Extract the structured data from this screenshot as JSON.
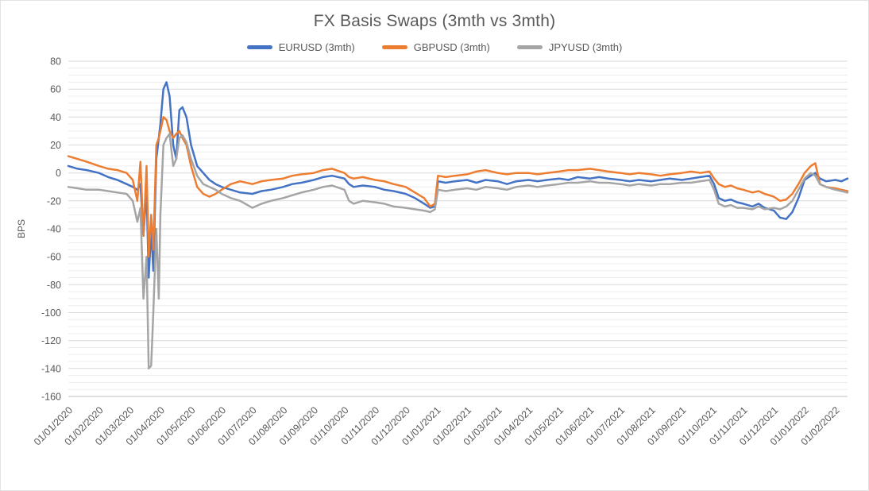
{
  "chart_data": {
    "type": "line",
    "title": "FX Basis Swaps (3mth vs 3mth)",
    "xlabel": "",
    "ylabel": "BPS",
    "ylim": [
      -160,
      80
    ],
    "y_major_step": 20,
    "y_minor_step": 5,
    "y_tick_labels": [
      80,
      60,
      40,
      20,
      0,
      -20,
      -40,
      -60,
      -80,
      -100,
      -120,
      -140,
      -160
    ],
    "grid": true,
    "legend_position": "top",
    "x_unit": "months since 01/01/2020",
    "x_range": [
      0,
      25.4
    ],
    "x_tick_positions": [
      0,
      1,
      2,
      3,
      4,
      5,
      6,
      7,
      8,
      9,
      10,
      11,
      12,
      13,
      14,
      15,
      16,
      17,
      18,
      19,
      20,
      21,
      22,
      23,
      24,
      25
    ],
    "x_tick_labels": [
      "01/01/2020",
      "01/02/2020",
      "01/03/2020",
      "01/04/2020",
      "01/05/2020",
      "01/06/2020",
      "01/07/2020",
      "01/08/2020",
      "01/09/2020",
      "01/10/2020",
      "01/11/2020",
      "01/12/2020",
      "01/01/2021",
      "01/02/2021",
      "01/03/2021",
      "01/04/2021",
      "01/05/2021",
      "01/06/2021",
      "01/07/2021",
      "01/08/2021",
      "01/09/2021",
      "01/10/2021",
      "01/11/2021",
      "01/12/2021",
      "01/01/2022",
      "01/02/2022"
    ],
    "x": [
      0,
      0.3,
      0.6,
      1,
      1.3,
      1.6,
      1.9,
      2.1,
      2.25,
      2.35,
      2.45,
      2.55,
      2.62,
      2.7,
      2.77,
      2.87,
      2.95,
      3,
      3.1,
      3.2,
      3.3,
      3.42,
      3.52,
      3.62,
      3.72,
      3.85,
      4,
      4.2,
      4.4,
      4.6,
      4.8,
      5,
      5.3,
      5.6,
      6,
      6.3,
      6.6,
      7,
      7.3,
      7.6,
      8,
      8.3,
      8.6,
      9,
      9.15,
      9.3,
      9.6,
      10,
      10.3,
      10.6,
      11,
      11.3,
      11.6,
      11.8,
      11.95,
      12.05,
      12.3,
      12.6,
      13,
      13.3,
      13.6,
      14,
      14.3,
      14.6,
      15,
      15.3,
      15.6,
      16,
      16.3,
      16.6,
      17,
      17.3,
      17.6,
      18,
      18.3,
      18.6,
      19,
      19.3,
      19.6,
      20,
      20.3,
      20.6,
      20.9,
      21.05,
      21.2,
      21.4,
      21.6,
      21.8,
      22,
      22.3,
      22.5,
      22.7,
      23,
      23.2,
      23.4,
      23.6,
      23.8,
      24,
      24.2,
      24.35,
      24.5,
      24.7,
      25,
      25.2,
      25.4
    ],
    "series": [
      {
        "name": "EURUSD (3mth)",
        "color": "#4472C4",
        "values": [
          5,
          3,
          2,
          0,
          -3,
          -5,
          -8,
          -10,
          -12,
          -8,
          -45,
          -12,
          -75,
          -40,
          -70,
          10,
          25,
          35,
          60,
          65,
          55,
          20,
          10,
          45,
          47,
          40,
          20,
          5,
          0,
          -5,
          -8,
          -10,
          -12,
          -14,
          -15,
          -13,
          -12,
          -10,
          -8,
          -7,
          -5,
          -3,
          -2,
          -4,
          -8,
          -10,
          -9,
          -10,
          -12,
          -13,
          -15,
          -18,
          -22,
          -25,
          -24,
          -6,
          -7,
          -6,
          -5,
          -7,
          -5,
          -6,
          -8,
          -6,
          -5,
          -6,
          -5,
          -4,
          -5,
          -3,
          -4,
          -3,
          -4,
          -5,
          -6,
          -5,
          -6,
          -5,
          -4,
          -5,
          -4,
          -3,
          -2,
          -8,
          -18,
          -20,
          -19,
          -21,
          -22,
          -24,
          -22,
          -25,
          -27,
          -32,
          -33,
          -28,
          -18,
          -5,
          -2,
          0,
          -4,
          -6,
          -5,
          -6,
          -4
        ]
      },
      {
        "name": "GBPUSD (3mth)",
        "color": "#ED7D31",
        "values": [
          12,
          10,
          8,
          5,
          3,
          2,
          0,
          -5,
          -20,
          8,
          -45,
          5,
          -60,
          -30,
          -55,
          20,
          25,
          30,
          40,
          38,
          30,
          25,
          28,
          30,
          25,
          20,
          5,
          -10,
          -15,
          -17,
          -15,
          -12,
          -8,
          -6,
          -8,
          -6,
          -5,
          -4,
          -2,
          -1,
          0,
          2,
          3,
          0,
          -3,
          -4,
          -3,
          -5,
          -6,
          -8,
          -10,
          -14,
          -18,
          -24,
          -22,
          -2,
          -3,
          -2,
          -1,
          1,
          2,
          0,
          -1,
          0,
          0,
          -1,
          0,
          1,
          2,
          2,
          3,
          2,
          1,
          0,
          -1,
          0,
          -1,
          -2,
          -1,
          0,
          1,
          0,
          1,
          -4,
          -8,
          -10,
          -9,
          -11,
          -12,
          -14,
          -13,
          -15,
          -17,
          -20,
          -19,
          -15,
          -8,
          0,
          5,
          7,
          -8,
          -10,
          -11,
          -12,
          -13
        ]
      },
      {
        "name": "JPYUSD (3mth)",
        "color": "#A5A5A5",
        "values": [
          -10,
          -11,
          -12,
          -12,
          -13,
          -14,
          -15,
          -20,
          -35,
          -25,
          -90,
          -60,
          -140,
          -138,
          -100,
          -40,
          -90,
          -30,
          20,
          25,
          28,
          5,
          10,
          25,
          27,
          22,
          10,
          -2,
          -8,
          -10,
          -12,
          -15,
          -18,
          -20,
          -25,
          -22,
          -20,
          -18,
          -16,
          -14,
          -12,
          -10,
          -9,
          -12,
          -20,
          -22,
          -20,
          -21,
          -22,
          -24,
          -25,
          -26,
          -27,
          -28,
          -26,
          -12,
          -13,
          -12,
          -11,
          -12,
          -10,
          -11,
          -12,
          -10,
          -9,
          -10,
          -9,
          -8,
          -7,
          -7,
          -6,
          -7,
          -7,
          -8,
          -9,
          -8,
          -9,
          -8,
          -8,
          -7,
          -7,
          -6,
          -5,
          -12,
          -22,
          -24,
          -23,
          -25,
          -25,
          -26,
          -24,
          -26,
          -25,
          -26,
          -24,
          -20,
          -12,
          -4,
          0,
          -2,
          -8,
          -10,
          -12,
          -13,
          -14
        ]
      }
    ],
    "colors": {
      "title_text": "#595959",
      "tick_text": "#595959",
      "major_grid": "#d9d9d9",
      "minor_grid": "#ededed",
      "axis_line": "#bfbfbf"
    }
  }
}
